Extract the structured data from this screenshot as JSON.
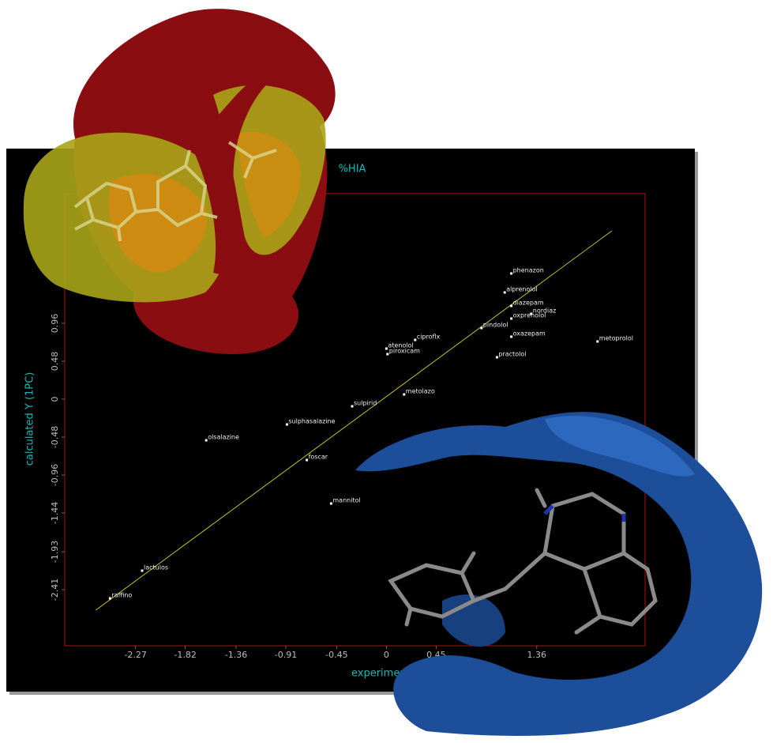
{
  "chart_data": {
    "type": "scatter",
    "title": "%HIA",
    "x_label": "experimental Y",
    "y_label": "calculated Y (1PC)",
    "labels": [
      "phenazon",
      "alprenolol",
      "diazepam",
      "nordiaz",
      "oxprenolol",
      "pindolol",
      "oxazepam",
      "metoprolol",
      "practolol",
      "ciproflx",
      "atenolol",
      "piroxicam",
      "metolazo",
      "sulpirid",
      "sulphasalazine",
      "olsalazine",
      "foscar",
      "mannitol",
      "lactulos",
      "raffino"
    ],
    "x": [
      1.13,
      1.07,
      1.13,
      1.31,
      1.13,
      0.86,
      1.13,
      1.91,
      1.0,
      0.26,
      0.0,
      0.01,
      0.16,
      -0.31,
      -0.9,
      -1.63,
      -0.72,
      -0.5,
      -2.21,
      -2.5
    ],
    "y": [
      1.59,
      1.35,
      1.18,
      1.08,
      1.02,
      0.9,
      0.79,
      0.73,
      0.53,
      0.75,
      0.64,
      0.57,
      0.06,
      -0.09,
      -0.32,
      -0.52,
      -0.77,
      -1.32,
      -2.17,
      -2.52
    ],
    "fit_line": {
      "x": [
        -2.63,
        2.04
      ],
      "y": [
        -2.67,
        2.13
      ]
    },
    "xlim": [
      -2.91,
      2.34
    ],
    "ylim": [
      -3.12,
      2.6
    ],
    "xticks": [
      -2.27,
      -1.82,
      -1.36,
      -0.91,
      -0.45,
      0.0,
      0.45,
      1.36
    ],
    "yticks": [
      -2.41,
      -1.93,
      -1.44,
      -0.96,
      -0.48,
      0.0,
      0.48,
      0.96
    ],
    "point_color": "#ffffff",
    "line_color": "#c8c020",
    "frame_color": "#b01010",
    "background": "#000000"
  }
}
